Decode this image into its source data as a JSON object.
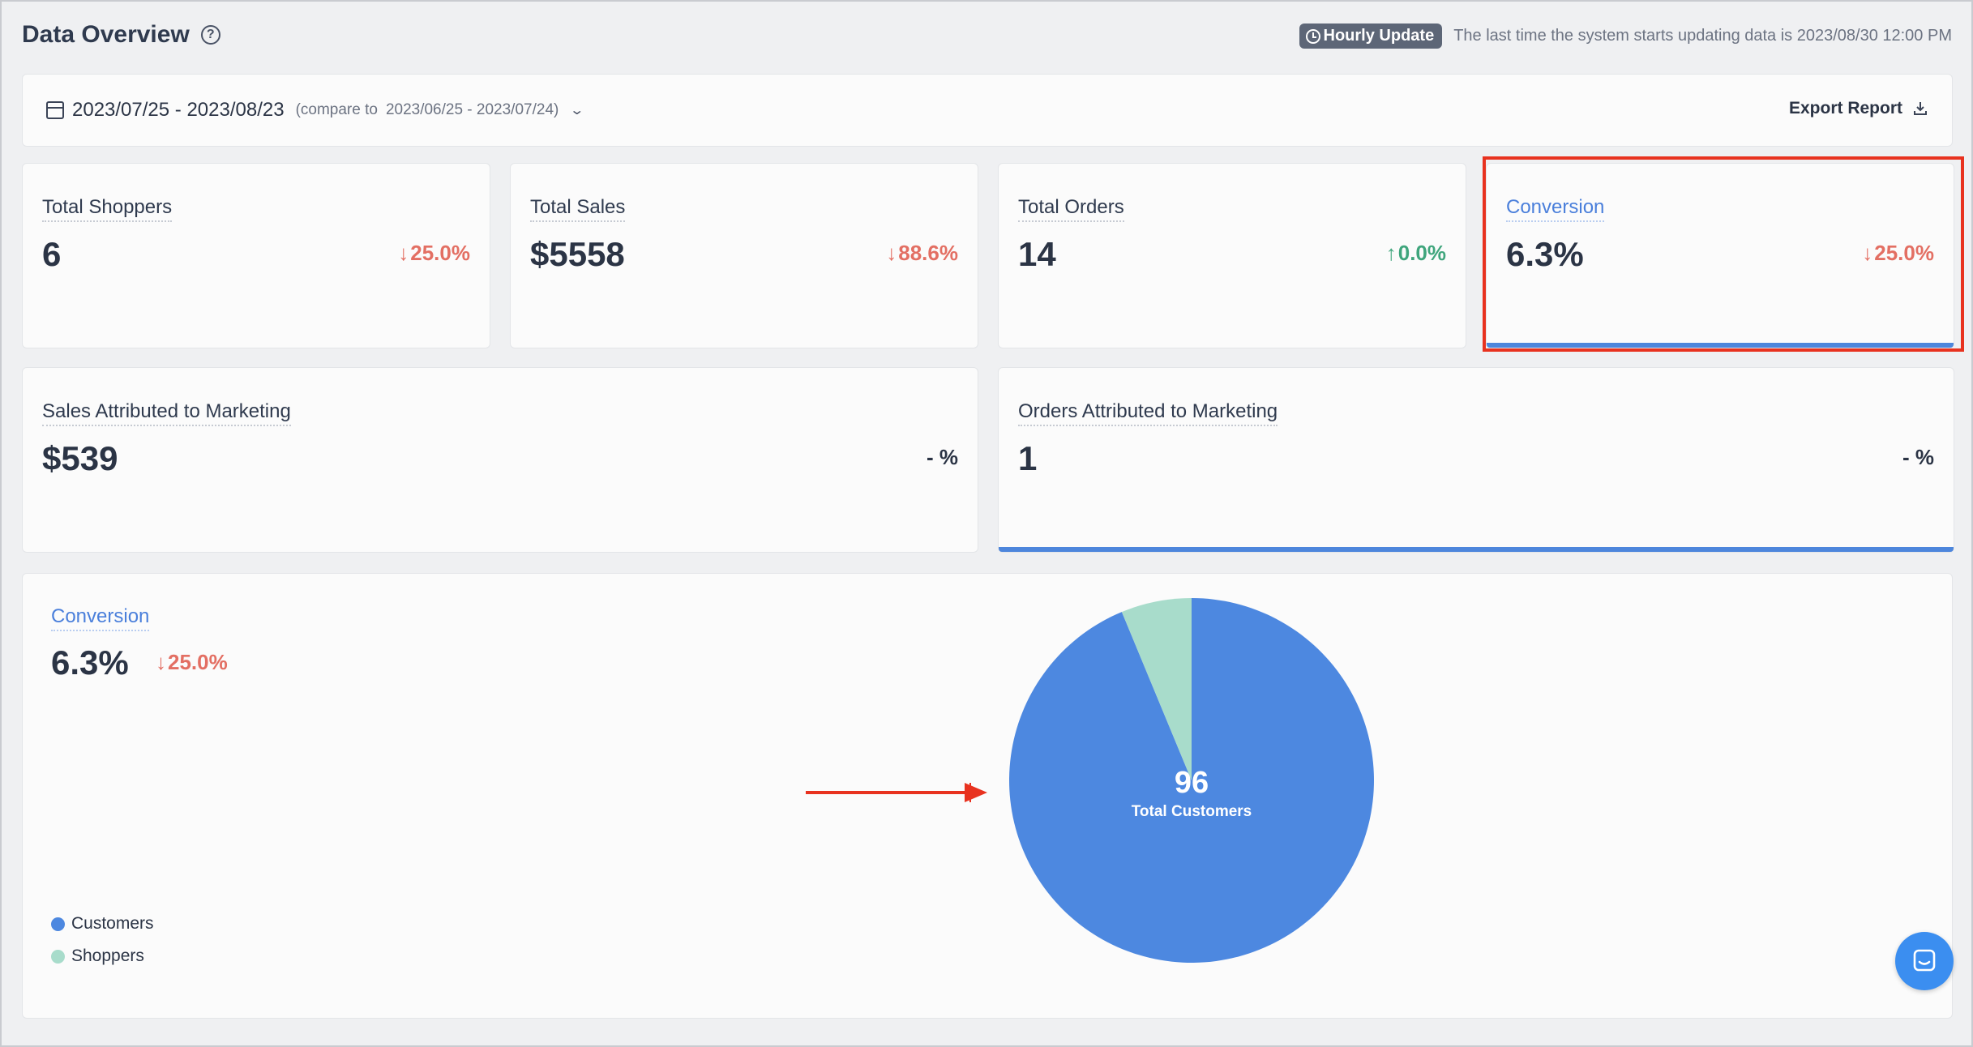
{
  "header": {
    "title": "Data Overview",
    "help_symbol": "?",
    "update_badge": "Hourly Update",
    "update_text": "The last time the system starts updating data is 2023/08/30 12:00 PM"
  },
  "date_bar": {
    "range": "2023/07/25 - 2023/08/23",
    "compare_label": "(compare to",
    "compare_range": "2023/06/25 - 2023/07/24)",
    "export_label": "Export Report"
  },
  "metrics": {
    "total_shoppers": {
      "label": "Total Shoppers",
      "value": "6",
      "arrow": "↓",
      "change": "25.0%"
    },
    "total_sales": {
      "label": "Total Sales",
      "value": "$5558",
      "arrow": "↓",
      "change": "88.6%"
    },
    "total_orders": {
      "label": "Total Orders",
      "value": "14",
      "arrow": "↑",
      "change": "0.0%"
    },
    "conversion": {
      "label": "Conversion",
      "value": "6.3%",
      "arrow": "↓",
      "change": "25.0%"
    },
    "sales_marketing": {
      "label": "Sales Attributed to Marketing",
      "value": "$539",
      "change": "- %"
    },
    "orders_marketing": {
      "label": "Orders Attributed to Marketing",
      "value": "1",
      "change": "- %"
    }
  },
  "colors": {
    "customers": "#4d88e0",
    "shoppers": "#a8dccb",
    "down": "#e36f63",
    "up": "#3fa57c"
  },
  "chart_data": {
    "type": "pie",
    "title": "Conversion",
    "value": "6.3%",
    "change_arrow": "↓",
    "change": "25.0%",
    "center_value": "96",
    "center_label": "Total Customers",
    "categories": [
      "Customers",
      "Shoppers"
    ],
    "values": [
      90,
      6
    ],
    "legend": [
      "Customers",
      "Shoppers"
    ],
    "legend_position": "bottom-left"
  }
}
